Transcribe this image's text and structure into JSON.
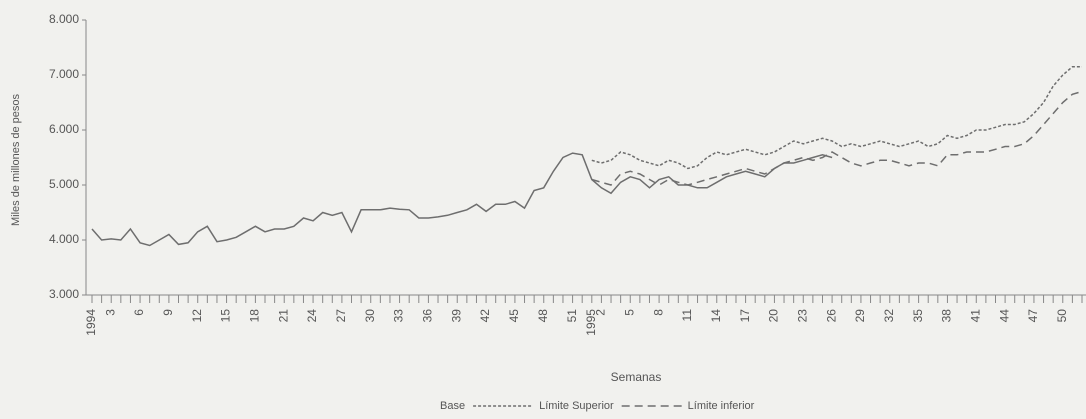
{
  "chart_data": {
    "type": "line",
    "y_label": "Miles de millones de pesos",
    "x_label": "Semanas",
    "categories": [
      "1994",
      null,
      "3",
      null,
      null,
      "6",
      null,
      null,
      "9",
      null,
      null,
      "12",
      null,
      null,
      "15",
      null,
      null,
      "18",
      null,
      null,
      "21",
      null,
      null,
      "24",
      null,
      null,
      "27",
      null,
      null,
      "30",
      null,
      null,
      "33",
      null,
      null,
      "36",
      null,
      null,
      "39",
      null,
      null,
      "42",
      null,
      null,
      "45",
      null,
      null,
      "48",
      null,
      null,
      "51",
      null,
      "1995",
      "2",
      null,
      null,
      "5",
      null,
      null,
      "8",
      null,
      null,
      "11",
      null,
      null,
      "14",
      null,
      null,
      "17",
      null,
      null,
      "20",
      null,
      null,
      "23",
      null,
      null,
      "26",
      null,
      null,
      "29",
      null,
      null,
      "32",
      null,
      null,
      "35",
      null,
      null,
      "38",
      null,
      null,
      "41",
      null,
      null,
      "44",
      null,
      null,
      "47",
      null,
      null,
      "50",
      null,
      null
    ],
    "series": [
      {
        "name": "Base",
        "color": "#6e6e6e",
        "dash": "solid",
        "values": [
          4200,
          4000,
          4020,
          4000,
          4200,
          3950,
          3900,
          4000,
          4100,
          3920,
          3950,
          4150,
          4250,
          3970,
          4000,
          4050,
          4150,
          4250,
          4150,
          4200,
          4200,
          4250,
          4400,
          4350,
          4500,
          4450,
          4500,
          4150,
          4550,
          4550,
          4550,
          4580,
          4560,
          4550,
          4400,
          4400,
          4420,
          4450,
          4500,
          4550,
          4650,
          4520,
          4650,
          4650,
          4700,
          4580,
          4900,
          4950,
          5250,
          5500,
          5580,
          5550,
          5100,
          4950,
          4850,
          5050,
          5150,
          5100,
          4950,
          5100,
          5150,
          5000,
          5000,
          4950,
          4950,
          5050,
          5150,
          5200,
          5250,
          5200,
          5150,
          5300,
          5400,
          5400,
          5450,
          5500,
          5550,
          5500,
          null,
          null,
          null,
          null,
          null,
          null,
          null,
          null,
          null,
          null,
          null,
          null,
          null,
          null,
          null,
          null,
          null,
          null,
          null,
          null,
          null,
          null,
          null,
          null,
          null,
          null
        ]
      },
      {
        "name": "Límite Superior",
        "color": "#6e6e6e",
        "dash": "dotted",
        "values": [
          null,
          null,
          null,
          null,
          null,
          null,
          null,
          null,
          null,
          null,
          null,
          null,
          null,
          null,
          null,
          null,
          null,
          null,
          null,
          null,
          null,
          null,
          null,
          null,
          null,
          null,
          null,
          null,
          null,
          null,
          null,
          null,
          null,
          null,
          null,
          null,
          null,
          null,
          null,
          null,
          null,
          null,
          null,
          null,
          null,
          null,
          null,
          null,
          null,
          null,
          null,
          null,
          5450,
          5400,
          5450,
          5600,
          5550,
          5450,
          5400,
          5350,
          5450,
          5400,
          5300,
          5350,
          5500,
          5600,
          5550,
          5600,
          5650,
          5600,
          5550,
          5600,
          5700,
          5800,
          5750,
          5800,
          5850,
          5800,
          5700,
          5750,
          5700,
          5750,
          5800,
          5750,
          5700,
          5750,
          5800,
          5700,
          5750,
          5900,
          5850,
          5900,
          6000,
          6000,
          6050,
          6100,
          6100,
          6150,
          6300,
          6500,
          6800,
          7000,
          7150,
          7150
        ]
      },
      {
        "name": "Límite inferior",
        "color": "#6e6e6e",
        "dash": "dashed",
        "values": [
          null,
          null,
          null,
          null,
          null,
          null,
          null,
          null,
          null,
          null,
          null,
          null,
          null,
          null,
          null,
          null,
          null,
          null,
          null,
          null,
          null,
          null,
          null,
          null,
          null,
          null,
          null,
          null,
          null,
          null,
          null,
          null,
          null,
          null,
          null,
          null,
          null,
          null,
          null,
          null,
          null,
          null,
          null,
          null,
          null,
          null,
          null,
          null,
          null,
          null,
          null,
          null,
          5100,
          5050,
          5000,
          5200,
          5250,
          5200,
          5100,
          5000,
          5100,
          5050,
          5000,
          5050,
          5100,
          5150,
          5200,
          5250,
          5300,
          5250,
          5200,
          5300,
          5400,
          5450,
          5500,
          5450,
          5500,
          5600,
          5500,
          5400,
          5350,
          5400,
          5450,
          5450,
          5400,
          5350,
          5400,
          5400,
          5350,
          5550,
          5550,
          5600,
          5600,
          5600,
          5650,
          5700,
          5700,
          5750,
          5900,
          6100,
          6300,
          6500,
          6650,
          6700
        ]
      }
    ],
    "ylim": [
      3000,
      8000
    ],
    "yticks": [
      {
        "value": 3000,
        "label": "3.000"
      },
      {
        "value": 4000,
        "label": "4.000"
      },
      {
        "value": 5000,
        "label": "5.000"
      },
      {
        "value": 6000,
        "label": "6.000"
      },
      {
        "value": 7000,
        "label": "7.000"
      },
      {
        "value": 8000,
        "label": "8.000"
      }
    ],
    "legend": "bottom"
  }
}
